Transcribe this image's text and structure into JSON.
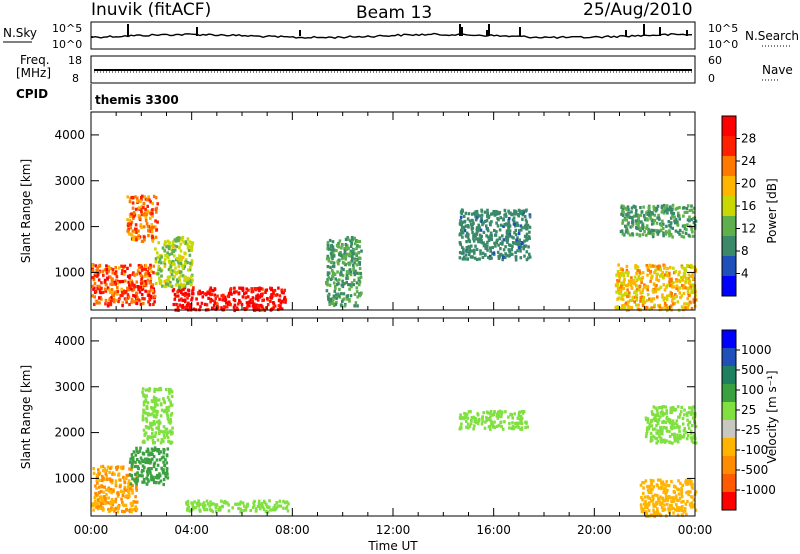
{
  "header": {
    "station": "Inuvik (fitACF)",
    "beam": "Beam 13",
    "date": "25/Aug/2010"
  },
  "status_panels": {
    "nsky_label": "N.Sky",
    "nsky_ticks": [
      "10^5",
      "10^0"
    ],
    "nsearch_label": "N.Search",
    "nsearch_ticks": [
      "10^5",
      "10^0"
    ],
    "freq_label_line1": "Freq.",
    "freq_label_line2": "[MHz]",
    "freq_ticks": [
      "18",
      "8"
    ],
    "nave_label": "Nave",
    "nave_ticks": [
      "60",
      "0"
    ],
    "cpid_label": "CPID",
    "cpid_value": "themis 3300"
  },
  "colors": {
    "power": [
      "#0000ff",
      "#1f4fb8",
      "#3a8a6a",
      "#5fb04c",
      "#c8d800",
      "#ffb400",
      "#ff7800",
      "#ff2000",
      "#ff0000"
    ],
    "velocity": [
      "#ff0000",
      "#ff5a00",
      "#ff8c00",
      "#ffb400",
      "#c8c8c0",
      "#80e040",
      "#3aa040",
      "#1f8060",
      "#1f4fb8",
      "#0000ff"
    ]
  },
  "chart_data": [
    {
      "type": "heatmap",
      "name": "power",
      "xlabel": "",
      "ylabel": "Slant Range [km]",
      "ylim": [
        180,
        4500
      ],
      "xlim_hours": [
        0,
        24
      ],
      "y_ticks": [
        1000,
        2000,
        3000,
        4000
      ],
      "colorbar_label": "Power [dB]",
      "colorbar_ticks": [
        "4",
        "8",
        "12",
        "16",
        "20",
        "24",
        "28"
      ],
      "colorbar_range": [
        0,
        30
      ],
      "regions": [
        {
          "t0": 0.0,
          "t1": 2.5,
          "r0": 300,
          "r1": 1200,
          "value": 24
        },
        {
          "t0": 1.4,
          "t1": 2.6,
          "r0": 1700,
          "r1": 2700,
          "value": 22
        },
        {
          "t0": 3.2,
          "t1": 7.7,
          "r0": 200,
          "r1": 700,
          "value": 29
        },
        {
          "t0": 2.5,
          "t1": 4.0,
          "r0": 700,
          "r1": 1800,
          "value": 14
        },
        {
          "t0": 9.3,
          "t1": 10.7,
          "r0": 300,
          "r1": 1800,
          "value": 10
        },
        {
          "t0": 14.6,
          "t1": 17.4,
          "r0": 1300,
          "r1": 2400,
          "value": 8
        },
        {
          "t0": 20.8,
          "t1": 24.0,
          "r0": 200,
          "r1": 1200,
          "value": 18
        },
        {
          "t0": 21.0,
          "t1": 24.0,
          "r0": 1800,
          "r1": 2500,
          "value": 10
        }
      ]
    },
    {
      "type": "heatmap",
      "name": "velocity",
      "xlabel": "Time UT",
      "ylabel": "Slant Range [km]",
      "ylim": [
        180,
        4500
      ],
      "xlim_hours": [
        0,
        24
      ],
      "y_ticks": [
        1000,
        2000,
        3000,
        4000
      ],
      "x_ticks": [
        "00:00",
        "04:00",
        "08:00",
        "12:00",
        "16:00",
        "20:00",
        "00:00"
      ],
      "colorbar_label": "Velocity [m s⁻¹]",
      "colorbar_ticks": [
        "-1000",
        "-500",
        "-100",
        "-25",
        "25",
        "100",
        "500",
        "1000"
      ],
      "regions": [
        {
          "t0": 0.0,
          "t1": 1.8,
          "r0": 300,
          "r1": 1300,
          "value": -500
        },
        {
          "t0": 1.5,
          "t1": 3.0,
          "r0": 900,
          "r1": 1700,
          "value": 80
        },
        {
          "t0": 2.0,
          "t1": 3.2,
          "r0": 1800,
          "r1": 3000,
          "value": 0
        },
        {
          "t0": 3.7,
          "t1": 7.8,
          "r0": 300,
          "r1": 550,
          "value": 0
        },
        {
          "t0": 14.6,
          "t1": 17.3,
          "r0": 2100,
          "r1": 2500,
          "value": 0
        },
        {
          "t0": 21.8,
          "t1": 24.0,
          "r0": 200,
          "r1": 1000,
          "value": -400
        },
        {
          "t0": 22.0,
          "t1": 24.0,
          "r0": 1800,
          "r1": 2600,
          "value": 0
        }
      ]
    }
  ]
}
